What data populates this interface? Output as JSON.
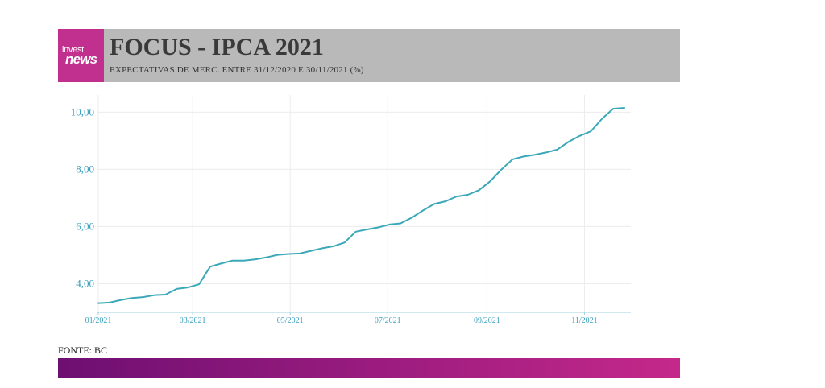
{
  "header": {
    "title": "FOCUS - IPCA 2021",
    "subtitle": "EXPECTATIVAS DE MERC. ENTRE 31/12/2020 E 30/11/2021 (%)",
    "logo_top": "invest",
    "logo_bottom": "news",
    "brand_color": "#c2308f",
    "header_bg": "#b9b9b9"
  },
  "source": "FONTE: BC",
  "footer_gradient": [
    "#6e0f72",
    "#c4288a"
  ],
  "chart_data": {
    "type": "line",
    "title": "FOCUS - IPCA 2021",
    "subtitle": "EXPECTATIVAS DE MERC. ENTRE 31/12/2020 E 30/11/2021 (%)",
    "xlabel": "",
    "ylabel": "",
    "line_color": "#3aa8b8",
    "grid": true,
    "x_ticks": [
      "01/2021",
      "03/2021",
      "05/2021",
      "07/2021",
      "09/2021",
      "11/2021"
    ],
    "y_ticks": [
      "4,00",
      "6,00",
      "8,00",
      "10,00"
    ],
    "xlim": [
      "2020-12-31",
      "2021-11-30"
    ],
    "ylim": [
      3.0,
      10.6
    ],
    "x": [
      "2021-01-01",
      "2021-01-08",
      "2021-01-15",
      "2021-01-22",
      "2021-01-29",
      "2021-02-05",
      "2021-02-12",
      "2021-02-19",
      "2021-02-26",
      "2021-03-05",
      "2021-03-12",
      "2021-03-19",
      "2021-03-26",
      "2021-04-02",
      "2021-04-09",
      "2021-04-16",
      "2021-04-23",
      "2021-04-30",
      "2021-05-07",
      "2021-05-14",
      "2021-05-21",
      "2021-05-28",
      "2021-06-04",
      "2021-06-11",
      "2021-06-18",
      "2021-06-25",
      "2021-07-02",
      "2021-07-09",
      "2021-07-16",
      "2021-07-23",
      "2021-07-30",
      "2021-08-06",
      "2021-08-13",
      "2021-08-20",
      "2021-08-27",
      "2021-09-03",
      "2021-09-10",
      "2021-09-17",
      "2021-09-24",
      "2021-10-01",
      "2021-10-08",
      "2021-10-15",
      "2021-10-22",
      "2021-10-29",
      "2021-11-05",
      "2021-11-12",
      "2021-11-19",
      "2021-11-26"
    ],
    "series": [
      {
        "values": [
          3.32,
          3.34,
          3.43,
          3.5,
          3.53,
          3.6,
          3.62,
          3.82,
          3.87,
          3.98,
          4.6,
          4.71,
          4.81,
          4.81,
          4.85,
          4.92,
          5.01,
          5.04,
          5.06,
          5.15,
          5.24,
          5.31,
          5.44,
          5.82,
          5.9,
          5.97,
          6.07,
          6.11,
          6.31,
          6.56,
          6.79,
          6.88,
          7.05,
          7.11,
          7.27,
          7.58,
          7.99,
          8.35,
          8.45,
          8.51,
          8.59,
          8.69,
          8.96,
          9.17,
          9.33,
          9.77,
          10.12,
          10.15
        ]
      }
    ]
  }
}
